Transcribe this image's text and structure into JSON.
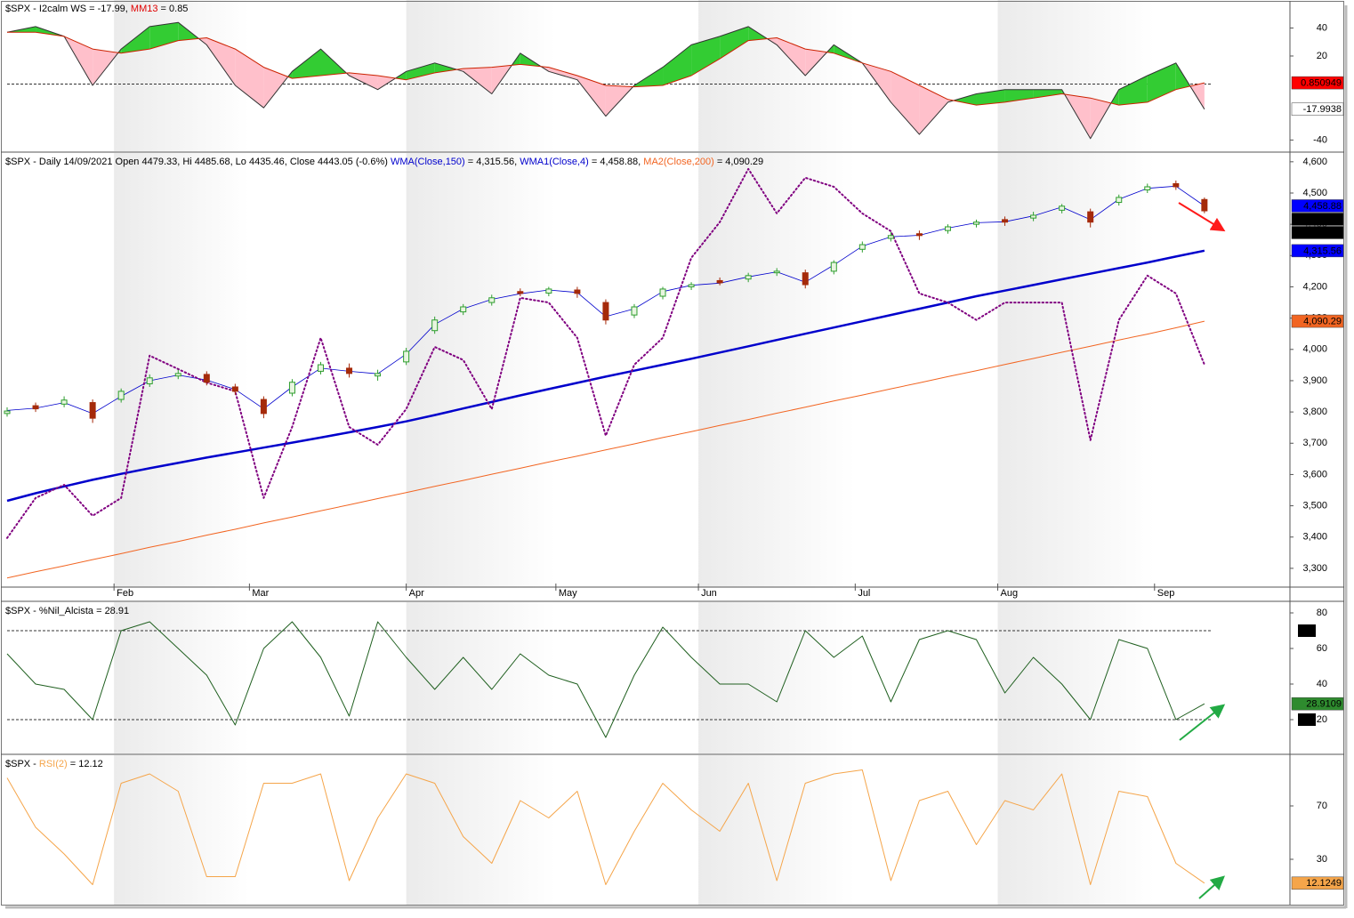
{
  "chart_data": [
    {
      "type": "area_band",
      "title": [
        {
          "text": "$SPX - I2calm WS = -17.99, ",
          "color": "#000000"
        },
        {
          "text": "MM13",
          "color": "#e00000"
        },
        {
          "text": " = 0.85",
          "color": "#000000"
        }
      ],
      "x": [
        0,
        4,
        8,
        12,
        16,
        20,
        24,
        28,
        32,
        36,
        40,
        44,
        48,
        52,
        56,
        60,
        64,
        68,
        72,
        76,
        80,
        84,
        88,
        92,
        96,
        100,
        104,
        108,
        112,
        116,
        120,
        124,
        128,
        132,
        136,
        140,
        144,
        148,
        152,
        156,
        160,
        164,
        168
      ],
      "xlim": [
        0,
        180
      ],
      "ylim": [
        -48,
        60
      ],
      "yticks": [
        40,
        20,
        -40
      ],
      "reference_lines": [
        0
      ],
      "fill_up": "#33cc33",
      "fill_down": "#ffc0cb",
      "series": [
        {
          "color": "#333333",
          "label_bg": "#ffffff",
          "label_fg": "#000000",
          "values": [
            37,
            41,
            34,
            -1,
            25,
            41,
            44,
            28,
            -1,
            -17,
            9,
            25,
            6,
            -4,
            9,
            15,
            9,
            -7,
            22,
            9,
            3,
            -23,
            -1,
            12,
            28,
            34,
            41,
            28,
            6,
            28,
            15,
            -13,
            -36,
            -13,
            -7,
            -4,
            -4,
            -4,
            -39,
            -4,
            6,
            15,
            -17.9938
          ]
        },
        {
          "color": "#cc2200",
          "label_bg": "#ff0000",
          "label_fg": "#000000",
          "values": [
            37,
            37,
            34,
            25,
            22,
            25,
            31,
            33,
            25,
            12,
            4,
            6,
            8,
            6,
            3,
            8,
            11,
            12,
            14,
            12,
            6,
            -1,
            -2,
            -1,
            6,
            18,
            31,
            33,
            25,
            22,
            15,
            9,
            -1,
            -11,
            -15,
            -13,
            -10,
            -7,
            -10,
            -15,
            -13,
            -4,
            0.850949
          ]
        }
      ]
    },
    {
      "type": "candlestick",
      "title": [
        {
          "text": "$SPX - Daily 14/09/2021 Open 4479.33, Hi 4485.68, Lo 4435.46, Close 4443.05 (-0.6%) ",
          "color": "#000000"
        },
        {
          "text": "WMA(Close,150)",
          "color": "#0000cc"
        },
        {
          "text": " = 4,315.56, ",
          "color": "#000000"
        },
        {
          "text": "WMA1(Close,4)",
          "color": "#0000cc"
        },
        {
          "text": " = 4,458.88, ",
          "color": "#000000"
        },
        {
          "text": "MA2(Close,200)",
          "color": "#f26522"
        },
        {
          "text": " = 4,090.29",
          "color": "#000000"
        }
      ],
      "x": [
        0,
        4,
        8,
        12,
        16,
        20,
        24,
        28,
        32,
        36,
        40,
        44,
        48,
        52,
        56,
        60,
        64,
        68,
        72,
        76,
        80,
        84,
        88,
        92,
        96,
        100,
        104,
        108,
        112,
        116,
        120,
        124,
        128,
        132,
        136,
        140,
        144,
        148,
        152,
        156,
        160,
        164,
        168
      ],
      "xlim": [
        0,
        180
      ],
      "xticks": [
        {
          "value": 15,
          "label": "Feb"
        },
        {
          "value": 34,
          "label": "Mar"
        },
        {
          "value": 56,
          "label": "Apr"
        },
        {
          "value": 77,
          "label": "May"
        },
        {
          "value": 97,
          "label": "Jun"
        },
        {
          "value": 119,
          "label": "Jul"
        },
        {
          "value": 139,
          "label": "Aug"
        },
        {
          "value": 161,
          "label": "Sep"
        }
      ],
      "ylim": [
        3240,
        4628
      ],
      "yticks": [
        {
          "value": 4600,
          "label": "4,600"
        },
        {
          "value": 4500,
          "label": "4,500"
        },
        {
          "value": 4400,
          "label": "4,400"
        },
        {
          "value": 4300,
          "label": "4,300"
        },
        {
          "value": 4200,
          "label": "4,200"
        },
        {
          "value": 4100,
          "label": "4,100"
        },
        {
          "value": 4000,
          "label": "4,000"
        },
        {
          "value": 3900,
          "label": "3,900"
        },
        {
          "value": 3800,
          "label": "3,800"
        },
        {
          "value": 3700,
          "label": "3,700"
        },
        {
          "value": 3600,
          "label": "3,600"
        },
        {
          "value": 3500,
          "label": "3,500"
        },
        {
          "value": 3400,
          "label": "3,400"
        },
        {
          "value": 3300,
          "label": "3,300"
        }
      ],
      "up_color": "#2e9e2e",
      "down_color": "#a52a0a",
      "open": [
        3795,
        3820,
        3825,
        3830,
        3840,
        3890,
        3915,
        3920,
        3880,
        3840,
        3860,
        3930,
        3940,
        3915,
        3960,
        4060,
        4120,
        4150,
        4185,
        4180,
        4190,
        4150,
        4110,
        4170,
        4200,
        4220,
        4225,
        4245,
        4245,
        4250,
        4320,
        4355,
        4370,
        4380,
        4400,
        4415,
        4420,
        4445,
        4440,
        4470,
        4510,
        4530,
        4479.33
      ],
      "high": [
        3815,
        3830,
        3850,
        3840,
        3875,
        3920,
        3935,
        3930,
        3890,
        3850,
        3905,
        3960,
        3955,
        3935,
        4005,
        4105,
        4145,
        4175,
        4195,
        4200,
        4200,
        4160,
        4145,
        4200,
        4215,
        4230,
        4245,
        4260,
        4255,
        4285,
        4345,
        4375,
        4380,
        4400,
        4415,
        4425,
        4440,
        4465,
        4450,
        4495,
        4530,
        4540,
        4485.68
      ],
      "low": [
        3785,
        3800,
        3815,
        3765,
        3830,
        3880,
        3905,
        3885,
        3855,
        3780,
        3850,
        3920,
        3910,
        3900,
        3950,
        4050,
        4110,
        4140,
        4170,
        4170,
        4165,
        4080,
        4100,
        4160,
        4190,
        4205,
        4215,
        4235,
        4195,
        4240,
        4310,
        4345,
        4350,
        4370,
        4390,
        4395,
        4410,
        4435,
        4390,
        4460,
        4500,
        4510,
        4435.46
      ],
      "close": [
        3803,
        3810,
        3838,
        3780,
        3866,
        3909,
        3923,
        3895,
        3866,
        3795,
        3895,
        3951,
        3923,
        3923,
        3994,
        4094,
        4136,
        4165,
        4179,
        4193,
        4179,
        4094,
        4136,
        4193,
        4207,
        4213,
        4236,
        4250,
        4207,
        4278,
        4335,
        4364,
        4364,
        4392,
        4407,
        4407,
        4429,
        4458,
        4407,
        4486,
        4520,
        4520,
        4443.05
      ],
      "close_labels": [
        "4,443.05",
        "4,443.05"
      ],
      "close_label_bg": "#000000",
      "close_label_fg": "#ffffff",
      "series": [
        {
          "color": "#0000cc",
          "width": 2.5,
          "last_label": "4,315.56",
          "label_bg": "#0000ff",
          "label_fg": "#ffffff",
          "values": [
            3516,
            3540,
            3562,
            3583,
            3602,
            3620,
            3637,
            3654,
            3670,
            3686,
            3702,
            3718,
            3735,
            3752,
            3770,
            3790,
            3811,
            3832,
            3853,
            3873,
            3893,
            3913,
            3932,
            3951,
            3970,
            3990,
            4010,
            4030,
            4050,
            4070,
            4090,
            4110,
            4130,
            4150,
            4170,
            4188,
            4206,
            4224,
            4242,
            4260,
            4278,
            4297,
            4315.56
          ]
        },
        {
          "color": "#0000cc",
          "width": 0.8,
          "last_label": "4,458.88",
          "label_bg": "#0000ff",
          "label_fg": "#ffffff",
          "values": [
            3805,
            3812,
            3830,
            3795,
            3850,
            3900,
            3918,
            3902,
            3872,
            3810,
            3880,
            3940,
            3930,
            3922,
            3985,
            4080,
            4130,
            4160,
            4178,
            4190,
            4182,
            4105,
            4130,
            4185,
            4205,
            4212,
            4232,
            4248,
            4215,
            4270,
            4330,
            4360,
            4365,
            4388,
            4405,
            4408,
            4427,
            4455,
            4415,
            4480,
            4515,
            4522,
            4458.88
          ]
        },
        {
          "color": "#f26522",
          "width": 1,
          "last_label": "4,090.29",
          "label_bg": "#f26522",
          "label_fg": "#000000",
          "values": [
            3269,
            3289,
            3308,
            3328,
            3347,
            3367,
            3386,
            3406,
            3425,
            3445,
            3464,
            3484,
            3503,
            3523,
            3542,
            3562,
            3581,
            3601,
            3620,
            3640,
            3659,
            3679,
            3698,
            3718,
            3737,
            3757,
            3776,
            3796,
            3815,
            3835,
            3854,
            3874,
            3893,
            3913,
            3932,
            3952,
            3971,
            3991,
            4010,
            4030,
            4049,
            4069,
            4090.29
          ]
        },
        {
          "color": "#800080",
          "width": 2,
          "dash": "1.5,3",
          "values": [
            3397,
            3525,
            3567,
            3468,
            3525,
            3980,
            3937,
            3894,
            3866,
            3525,
            3752,
            4037,
            3752,
            3695,
            3809,
            4008,
            3966,
            3809,
            4165,
            4150,
            4037,
            3724,
            3951,
            4037,
            4293,
            4407,
            4577,
            4435,
            4549,
            4520,
            4435,
            4378,
            4179,
            4150,
            4094,
            4150,
            4150,
            4150,
            3710,
            4094,
            4236,
            4179,
            3951
          ]
        }
      ]
    },
    {
      "type": "line",
      "title": [
        {
          "text": "$SPX - %Nil_Alcista = 28.91",
          "color": "#000000"
        }
      ],
      "x": [
        0,
        4,
        8,
        12,
        16,
        20,
        24,
        28,
        32,
        36,
        40,
        44,
        48,
        52,
        56,
        60,
        64,
        68,
        72,
        76,
        80,
        84,
        88,
        92,
        96,
        100,
        104,
        108,
        112,
        116,
        120,
        124,
        128,
        132,
        136,
        140,
        144,
        148,
        152,
        156,
        160,
        164,
        168
      ],
      "xlim": [
        0,
        180
      ],
      "ylim": [
        1,
        86
      ],
      "yticks": [
        80,
        60,
        40,
        20
      ],
      "reference_lines": [
        70,
        20
      ],
      "reference_label_bg": "#000000",
      "reference_label_fg": "#ffffff",
      "series": [
        {
          "color": "#1f5f1f",
          "width": 1,
          "label_bg": "#2e8b2e",
          "label_fg": "#000000",
          "values": [
            57,
            40,
            37,
            20,
            70,
            75,
            60,
            45,
            17,
            60,
            75,
            55,
            22,
            75,
            55,
            37,
            55,
            37,
            57,
            45,
            40,
            10,
            45,
            72,
            55,
            40,
            40,
            30,
            70,
            55,
            67,
            30,
            65,
            70,
            65,
            35,
            55,
            40,
            20,
            65,
            60,
            20,
            28.9109
          ]
        }
      ]
    },
    {
      "type": "line",
      "title": [
        {
          "text": "$SPX - ",
          "color": "#000000"
        },
        {
          "text": "RSI(2)",
          "color": "#f5a54a"
        },
        {
          "text": " = 12.12",
          "color": "#000000"
        }
      ],
      "x": [
        0,
        4,
        8,
        12,
        16,
        20,
        24,
        28,
        32,
        36,
        40,
        44,
        48,
        52,
        56,
        60,
        64,
        68,
        72,
        76,
        80,
        84,
        88,
        92,
        96,
        100,
        104,
        108,
        112,
        116,
        120,
        124,
        128,
        132,
        136,
        140,
        144,
        148,
        152,
        156,
        160,
        164,
        168
      ],
      "xlim": [
        0,
        180
      ],
      "ylim": [
        -4,
        108
      ],
      "yticks": [
        70,
        30
      ],
      "series": [
        {
          "color": "#f5a54a",
          "width": 1,
          "label_bg": "#f5a54a",
          "label_fg": "#000000",
          "values": [
            91,
            54,
            34,
            11,
            87,
            94,
            81,
            17,
            17,
            87,
            87,
            94,
            14,
            61,
            94,
            87,
            47,
            27,
            74,
            61,
            81,
            11,
            51,
            87,
            67,
            51,
            87,
            14,
            87,
            94,
            97,
            14,
            74,
            81,
            41,
            74,
            67,
            94,
            11,
            81,
            77,
            27,
            12.1249
          ]
        }
      ]
    }
  ]
}
